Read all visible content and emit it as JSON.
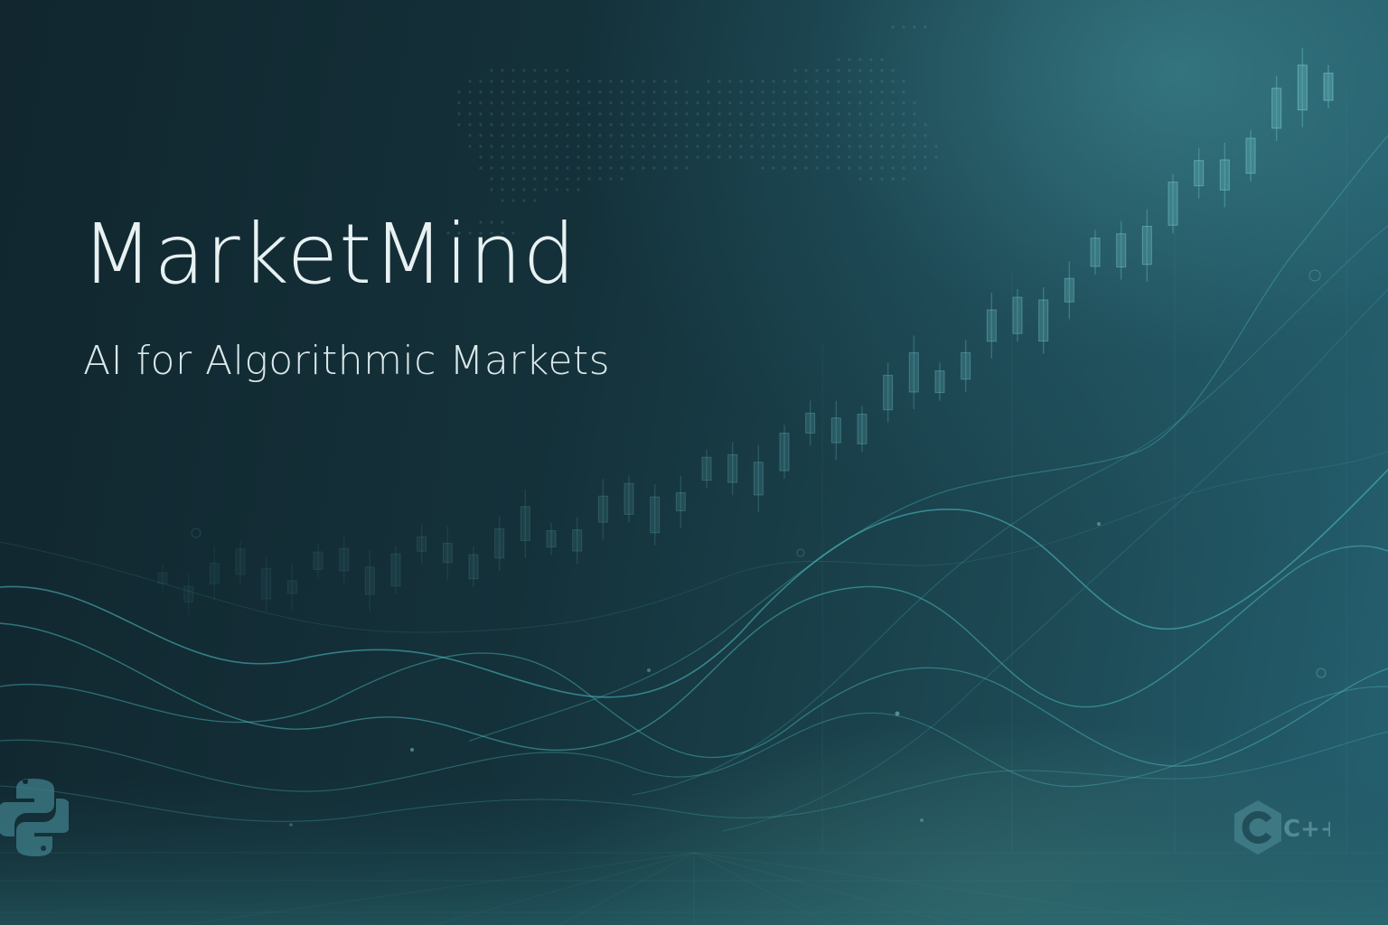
{
  "brand": {
    "title": "MarketMind",
    "subtitle": "AI for Algorithmic Markets"
  },
  "logos": {
    "left": "python-logo-icon",
    "right": "cpp-logo-icon",
    "right_text": "C++"
  },
  "colors": {
    "background_dark": "#11262e",
    "background_light": "#256070",
    "wave_line": "#4fc3c8",
    "candle": "#5aa7ad",
    "title_text": "#e8f1f2"
  }
}
